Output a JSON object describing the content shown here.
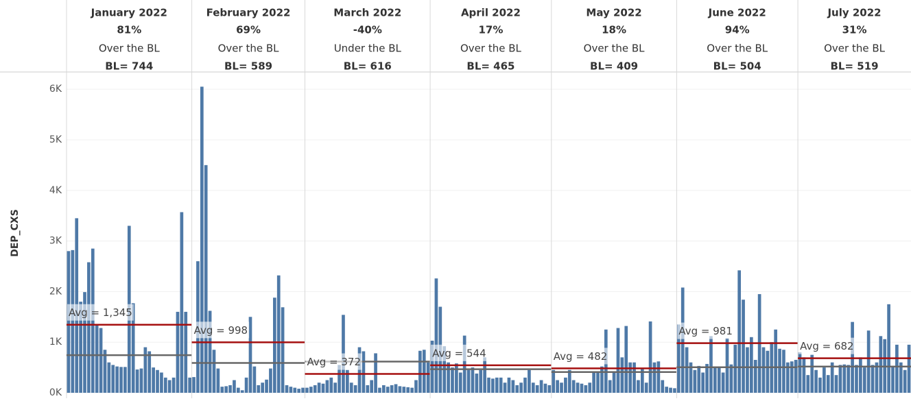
{
  "chart_data": {
    "type": "bar",
    "y_label": "DEP_CXS",
    "color": "#4e79a7",
    "avg_color": "#a50f0f",
    "bl_color": "#666666",
    "ylim": [
      0,
      6300
    ],
    "yticks": [
      {
        "value": 0,
        "label": "0K"
      },
      {
        "value": 1000,
        "label": "1K"
      },
      {
        "value": 2000,
        "label": "2K"
      },
      {
        "value": 3000,
        "label": "3K"
      },
      {
        "value": 4000,
        "label": "4K"
      },
      {
        "value": 5000,
        "label": "5K"
      },
      {
        "value": 6000,
        "label": "6K"
      }
    ],
    "grid": true,
    "panels": [
      {
        "title": "January 2022",
        "change": 81,
        "change_label": "81%",
        "status": "Over the BL",
        "bl": 744,
        "bl_label": "BL= 744",
        "avg": 1345,
        "avg_label": "Avg = 1,345",
        "values": [
          2800,
          2820,
          3450,
          1800,
          1990,
          2580,
          2850,
          1350,
          1280,
          850,
          600,
          550,
          520,
          510,
          510,
          3300,
          1770,
          460,
          480,
          900,
          820,
          500,
          450,
          400,
          300,
          250,
          300,
          1600,
          3570,
          1600,
          300
        ]
      },
      {
        "title": "February 2022",
        "change": 69,
        "change_label": "69%",
        "status": "Over the BL",
        "bl": 589,
        "bl_label": "BL= 589",
        "avg": 998,
        "avg_label": "Avg = 998",
        "values": [
          310,
          2600,
          6050,
          4500,
          1620,
          850,
          480,
          120,
          130,
          150,
          250,
          100,
          50,
          300,
          1500,
          520,
          150,
          200,
          260,
          480,
          1880,
          2320,
          1690,
          150,
          120,
          100,
          80,
          100
        ]
      },
      {
        "title": "March 2022",
        "change": -40,
        "change_label": "-40%",
        "status": "Under the BL",
        "bl": 616,
        "bl_label": "BL= 616",
        "avg": 372,
        "avg_label": "Avg = 372",
        "values": [
          100,
          120,
          150,
          200,
          180,
          250,
          300,
          200,
          550,
          1540,
          450,
          200,
          150,
          900,
          820,
          150,
          250,
          780,
          100,
          150,
          120,
          150,
          170,
          130,
          120,
          110,
          100,
          250,
          830,
          850,
          600
        ]
      },
      {
        "title": "April 2022",
        "change": 17,
        "change_label": "17%",
        "status": "Over the BL",
        "bl": 465,
        "bl_label": "BL= 465",
        "avg": 544,
        "avg_label": "Avg = 544",
        "values": [
          1030,
          2260,
          1700,
          920,
          600,
          500,
          580,
          400,
          1130,
          450,
          500,
          380,
          450,
          700,
          300,
          280,
          300,
          300,
          200,
          300,
          250,
          150,
          200,
          300,
          450,
          200,
          150,
          250,
          180,
          150
        ]
      },
      {
        "title": "May 2022",
        "change": 18,
        "change_label": "18%",
        "status": "Over the BL",
        "bl": 409,
        "bl_label": "BL= 409",
        "avg": 482,
        "avg_label": "Avg = 482",
        "values": [
          450,
          250,
          200,
          300,
          450,
          250,
          200,
          180,
          150,
          200,
          400,
          420,
          520,
          1250,
          250,
          400,
          1280,
          700,
          1320,
          600,
          600,
          250,
          480,
          200,
          1410,
          600,
          620,
          250,
          120,
          100,
          90
        ]
      },
      {
        "title": "June 2022",
        "change": 94,
        "change_label": "94%",
        "status": "Over the BL",
        "bl": 504,
        "bl_label": "BL= 504",
        "avg": 981,
        "avg_label": "Avg = 981",
        "values": [
          1350,
          2080,
          900,
          600,
          450,
          530,
          400,
          570,
          1120,
          500,
          520,
          400,
          1080,
          560,
          950,
          2420,
          1840,
          900,
          1100,
          650,
          1950,
          900,
          830,
          1000,
          1250,
          870,
          850,
          600,
          620,
          650
        ]
      },
      {
        "title": "July 2022",
        "change": 31,
        "change_label": "31%",
        "status": "Over the BL",
        "bl": 519,
        "bl_label": "BL= 519",
        "avg": 682,
        "avg_label": "Avg = 682",
        "values": [
          800,
          700,
          350,
          750,
          450,
          300,
          500,
          350,
          600,
          350,
          550,
          560,
          550,
          1400,
          550,
          700,
          500,
          1230,
          550,
          600,
          1120,
          1060,
          1750,
          520,
          950,
          600,
          450,
          950
        ]
      }
    ]
  }
}
